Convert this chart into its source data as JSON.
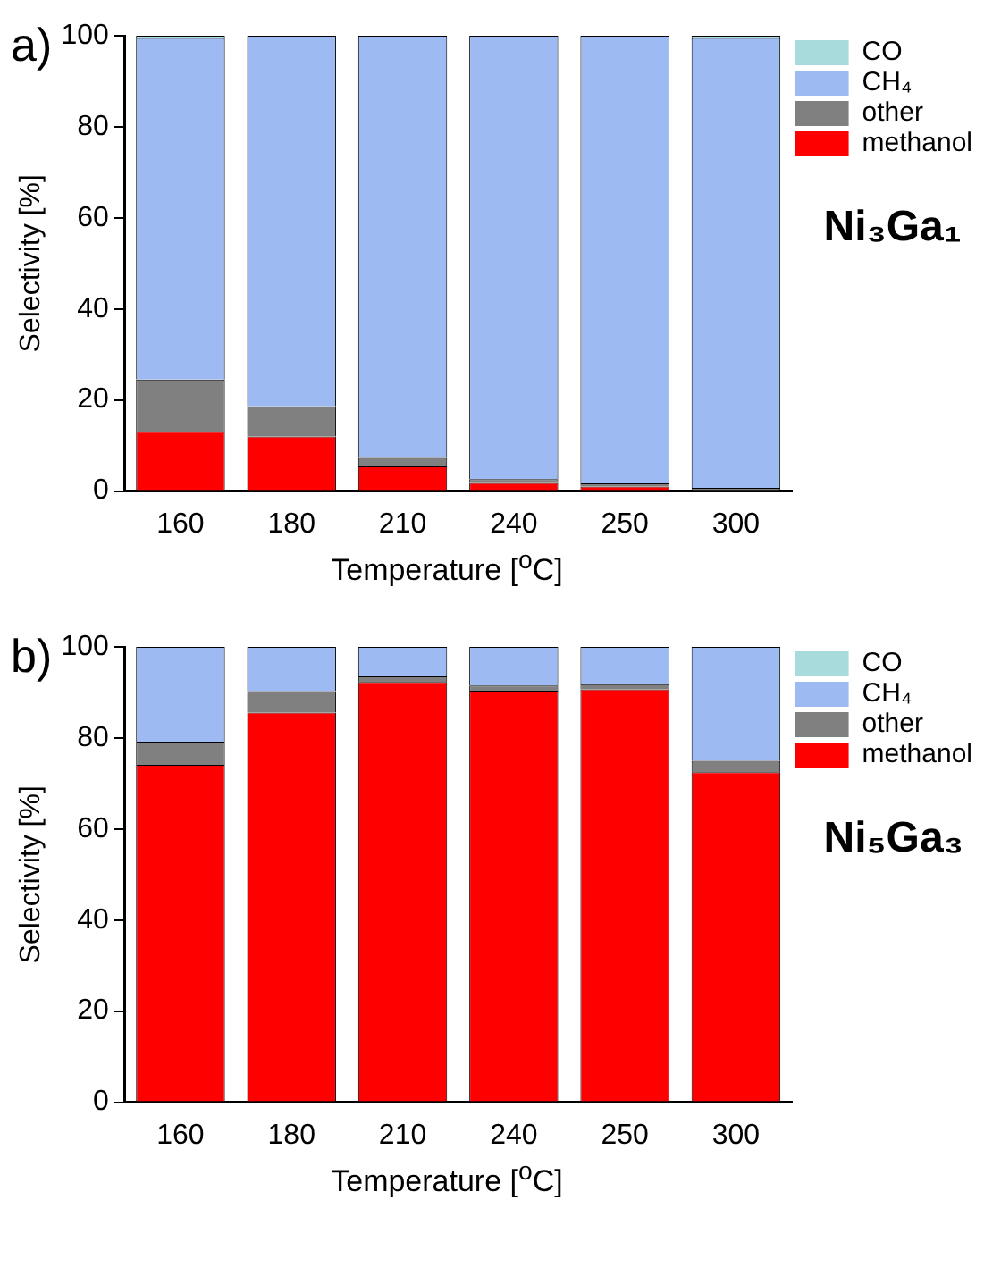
{
  "chart_data": [
    {
      "type": "bar",
      "stacked": true,
      "categories": [
        "160",
        "180",
        "210",
        "240",
        "250",
        "300"
      ],
      "xlabel": "Temperature [$^{o}$C]",
      "ylabel": "Selectivity [%]",
      "ylim": [
        0,
        100
      ],
      "yticks": [
        0,
        20,
        40,
        60,
        80,
        100
      ],
      "grid": false,
      "legend": "top right",
      "annotations": [
        "a)",
        "Ni₃Ga₁"
      ],
      "series": [
        {
          "name": "methanol",
          "color": "#ff0000",
          "values": [
            13,
            12,
            5.4,
            1.8,
            1.0,
            0
          ]
        },
        {
          "name": "other",
          "color": "#808080",
          "values": [
            11.5,
            6.6,
            1.9,
            0.8,
            0.7,
            0.7
          ]
        },
        {
          "name": "CH₄",
          "color": "#9dbbf2",
          "values": [
            75,
            81.4,
            92.7,
            97.4,
            98.3,
            98.8
          ]
        },
        {
          "name": "CO",
          "color": "#a8dcdc",
          "values": [
            0.5,
            0,
            0,
            0,
            0,
            0.5
          ]
        }
      ]
    },
    {
      "type": "bar",
      "stacked": true,
      "categories": [
        "160",
        "180",
        "210",
        "240",
        "250",
        "300"
      ],
      "xlabel": "Temperature [$^{o}$C]",
      "ylabel": "Selectivity [%]",
      "ylim": [
        0,
        100
      ],
      "yticks": [
        0,
        20,
        40,
        60,
        80,
        100
      ],
      "grid": false,
      "legend": "top right",
      "annotations": [
        "b)",
        "Ni₅Ga₃"
      ],
      "series": [
        {
          "name": "methanol",
          "color": "#ff0000",
          "values": [
            74.1,
            85.6,
            92.3,
            90.4,
            90.7,
            72.5
          ]
        },
        {
          "name": "other",
          "color": "#808080",
          "values": [
            5.1,
            4.7,
            1.2,
            1.1,
            1.1,
            2.5
          ]
        },
        {
          "name": "CH₄",
          "color": "#9dbbf2",
          "values": [
            20.8,
            9.7,
            6.5,
            8.5,
            8.2,
            25
          ]
        },
        {
          "name": "CO",
          "color": "#a8dcdc",
          "values": [
            0,
            0,
            0,
            0,
            0,
            0
          ]
        }
      ]
    }
  ]
}
